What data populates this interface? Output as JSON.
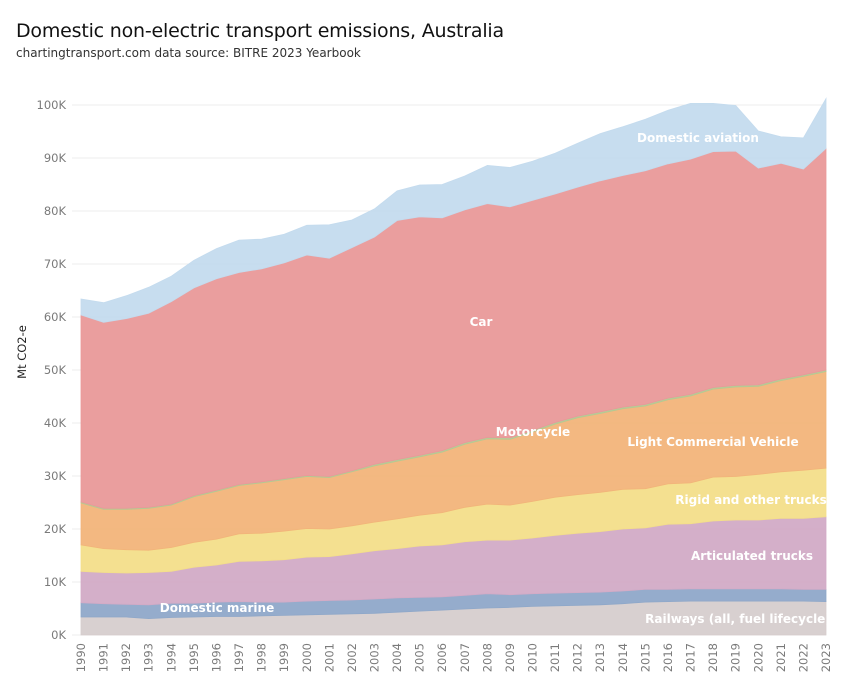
{
  "header": {
    "title": "Domestic non-electric transport emissions, Australia",
    "subtitle": "chartingtransport.com  data source: BITRE 2023 Yearbook"
  },
  "chart_data": {
    "type": "area",
    "stacked": true,
    "ylabel": "Mt CO2-e",
    "ylim": [
      0,
      100000
    ],
    "y_ticks": [
      0,
      10000,
      20000,
      30000,
      40000,
      50000,
      60000,
      70000,
      80000,
      90000,
      100000
    ],
    "y_tick_labels": [
      "0K",
      "10K",
      "20K",
      "30K",
      "40K",
      "50K",
      "60K",
      "70K",
      "80K",
      "90K",
      "100K"
    ],
    "grid": true,
    "x": [
      "1990",
      "1991",
      "1992",
      "1993",
      "1994",
      "1995",
      "1996",
      "1997",
      "1998",
      "1999",
      "2000",
      "2001",
      "2002",
      "2003",
      "2004",
      "2005",
      "2006",
      "2007",
      "2008",
      "2009",
      "2010",
      "2011",
      "2012",
      "2013",
      "2014",
      "2015",
      "2016",
      "2017",
      "2018",
      "2019",
      "2020",
      "2021",
      "2022",
      "2023"
    ],
    "series": [
      {
        "name": "Railways (all, fuel lifecycle)",
        "color": "#d6cdcd",
        "values": [
          3400,
          3400,
          3400,
          3100,
          3300,
          3400,
          3500,
          3500,
          3600,
          3700,
          3800,
          3900,
          4000,
          4100,
          4300,
          4500,
          4700,
          4900,
          5100,
          5200,
          5400,
          5500,
          5600,
          5700,
          5900,
          6200,
          6300,
          6400,
          6400,
          6400,
          6400,
          6400,
          6400,
          6300
        ]
      },
      {
        "name": "Domestic marine",
        "color": "#8fa8c9",
        "values": [
          2700,
          2500,
          2400,
          2600,
          2700,
          2600,
          2700,
          2800,
          2600,
          2500,
          2600,
          2600,
          2600,
          2700,
          2700,
          2600,
          2500,
          2600,
          2700,
          2400,
          2400,
          2400,
          2400,
          2400,
          2400,
          2400,
          2300,
          2300,
          2300,
          2300,
          2300,
          2300,
          2200,
          2300
        ]
      },
      {
        "name": "Articulated trucks",
        "color": "#d2abc6",
        "values": [
          5900,
          5900,
          5900,
          6100,
          6000,
          6800,
          7000,
          7600,
          7800,
          8000,
          8300,
          8300,
          8700,
          9100,
          9300,
          9700,
          9800,
          10100,
          10100,
          10300,
          10500,
          10900,
          11200,
          11400,
          11700,
          11600,
          12300,
          12300,
          12800,
          13000,
          13000,
          13300,
          13400,
          13700
        ]
      },
      {
        "name": "Rigid and other trucks",
        "color": "#f3de8a",
        "values": [
          5000,
          4500,
          4400,
          4200,
          4500,
          4700,
          4900,
          5200,
          5200,
          5400,
          5400,
          5200,
          5300,
          5400,
          5600,
          5800,
          6100,
          6500,
          6800,
          6600,
          6900,
          7200,
          7300,
          7400,
          7500,
          7400,
          7600,
          7700,
          8300,
          8200,
          8600,
          8800,
          9100,
          9200
        ]
      },
      {
        "name": "Light Commercial Vehicle",
        "color": "#f2b47a",
        "values": [
          7900,
          7400,
          7600,
          7900,
          8000,
          8600,
          9000,
          9100,
          9500,
          9700,
          9800,
          9700,
          10200,
          10600,
          10900,
          11000,
          11400,
          11900,
          12300,
          12400,
          13100,
          13800,
          14500,
          14900,
          15200,
          15600,
          15900,
          16400,
          16600,
          16900,
          16600,
          17200,
          17700,
          18200
        ]
      },
      {
        "name": "Motorcycle",
        "color": "#b4c993",
        "values": [
          200,
          200,
          200,
          200,
          200,
          200,
          200,
          200,
          200,
          200,
          200,
          200,
          200,
          300,
          300,
          300,
          300,
          300,
          300,
          300,
          300,
          300,
          300,
          300,
          300,
          300,
          300,
          300,
          300,
          300,
          300,
          300,
          300,
          300
        ]
      },
      {
        "name": "Car",
        "color": "#e99999",
        "values": [
          35300,
          35100,
          35800,
          36600,
          38200,
          39200,
          39900,
          40000,
          40200,
          40700,
          41600,
          41200,
          42100,
          42900,
          45100,
          45000,
          43900,
          43900,
          44100,
          43600,
          43400,
          43100,
          43200,
          43600,
          43700,
          44100,
          44200,
          44400,
          44500,
          44200,
          40900,
          40700,
          38800,
          41800
        ]
      },
      {
        "name": "Domestic aviation",
        "color": "#c4dbee",
        "values": [
          3000,
          3700,
          4300,
          4900,
          4800,
          5200,
          5700,
          6100,
          5600,
          5400,
          5600,
          6300,
          5200,
          5300,
          5600,
          6000,
          6300,
          6400,
          7200,
          7400,
          7400,
          7700,
          8300,
          8900,
          9200,
          9700,
          10100,
          10500,
          9100,
          8600,
          7000,
          5000,
          5900,
          9400
        ]
      }
    ]
  }
}
